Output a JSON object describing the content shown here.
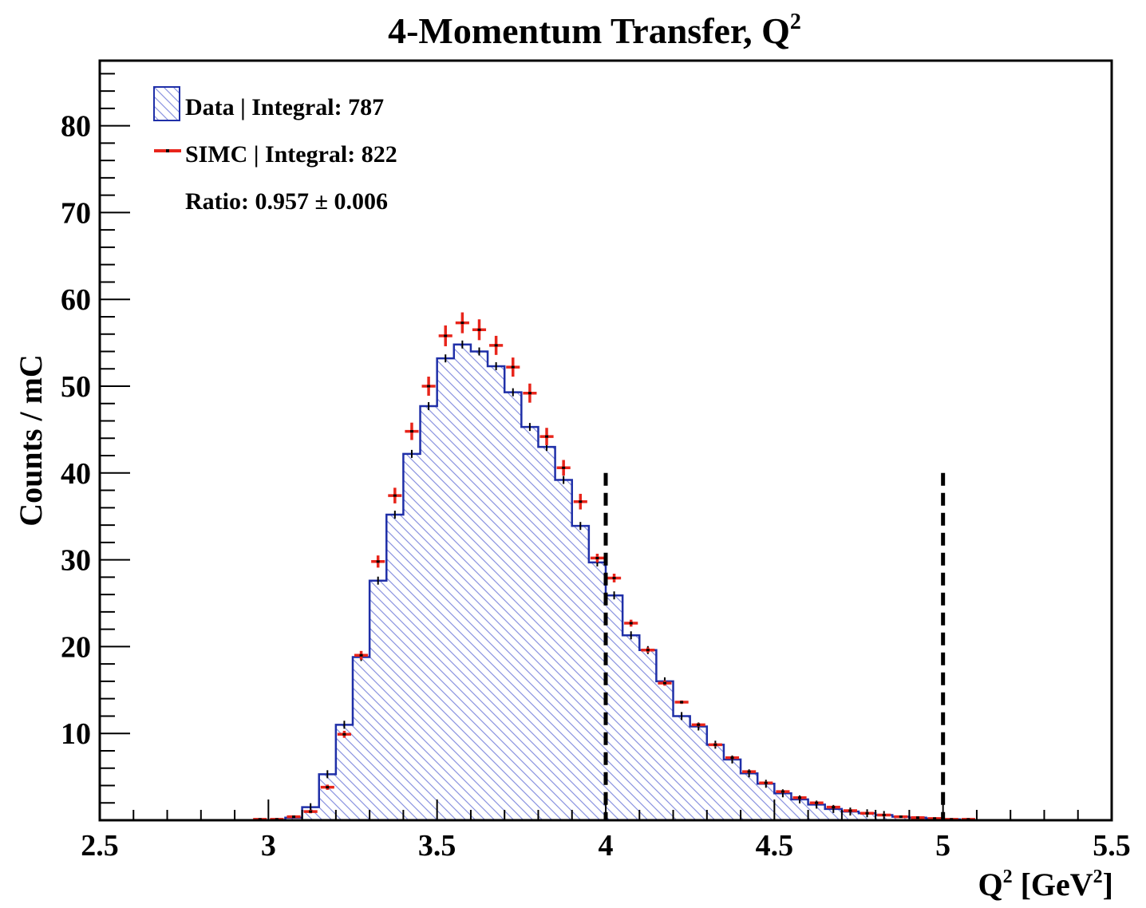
{
  "chart_data": {
    "type": "histogram",
    "title": "4-Momentum Transfer, Q",
    "title_sup": "2",
    "xlabel_main": "Q",
    "xlabel_sup": "2",
    "xlabel_unit": " [GeV",
    "xlabel_unit_sup": "2",
    "xlabel_close": "]",
    "ylabel": "Counts / mC",
    "xlim": [
      2.5,
      5.5
    ],
    "ylim": [
      0,
      87.5
    ],
    "x_ticks": [
      "2.5",
      "3",
      "3.5",
      "4",
      "4.5",
      "5",
      "5.5"
    ],
    "x_tick_values": [
      2.5,
      3.0,
      3.5,
      4.0,
      4.5,
      5.0,
      5.5
    ],
    "y_ticks": [
      "10",
      "20",
      "30",
      "40",
      "50",
      "60",
      "70",
      "80"
    ],
    "y_tick_values": [
      10,
      20,
      30,
      40,
      50,
      60,
      70,
      80
    ],
    "bin_width": 0.05,
    "bin_low_edges": [
      2.5,
      2.55,
      2.6,
      2.65,
      2.7,
      2.75,
      2.8,
      2.85,
      2.9,
      2.95,
      3.0,
      3.05,
      3.1,
      3.15,
      3.2,
      3.25,
      3.3,
      3.35,
      3.4,
      3.45,
      3.5,
      3.55,
      3.6,
      3.65,
      3.7,
      3.75,
      3.8,
      3.85,
      3.9,
      3.95,
      4.0,
      4.05,
      4.1,
      4.15,
      4.2,
      4.25,
      4.3,
      4.35,
      4.4,
      4.45,
      4.5,
      4.55,
      4.6,
      4.65,
      4.7,
      4.75,
      4.8,
      4.85,
      4.9,
      4.95,
      5.0,
      5.05,
      5.1,
      5.15,
      5.2,
      5.25,
      5.3,
      5.35,
      5.4,
      5.45
    ],
    "series": [
      {
        "name": "Data",
        "legend_label": "Data | Integral: 787",
        "style": "hatched-histogram",
        "color": "#1f2fa8",
        "values": [
          0,
          0,
          0,
          0,
          0,
          0,
          0,
          0,
          0,
          0,
          0,
          0.3,
          1.5,
          5.3,
          11,
          18.8,
          27.6,
          35.2,
          42.2,
          47.7,
          53.2,
          54.8,
          54,
          52.3,
          49.3,
          45.3,
          43,
          39.2,
          33.9,
          29.7,
          25.9,
          21.3,
          19.6,
          16,
          12,
          10.8,
          8.7,
          7,
          5.4,
          4.2,
          3.1,
          2.4,
          1.8,
          1.3,
          1,
          0.8,
          0.6,
          0.4,
          0.3,
          0.2,
          0.1,
          0,
          0,
          0,
          0,
          0,
          0,
          0,
          0,
          0
        ]
      },
      {
        "name": "SIMC",
        "legend_label": "SIMC | Integral: 822",
        "style": "points-with-error-bars",
        "color": "#e8251b",
        "values": [
          0,
          0,
          0,
          0,
          0,
          0,
          0,
          0,
          0,
          0.1,
          0.1,
          0.4,
          1,
          3.8,
          9.9,
          19,
          29.8,
          37.4,
          44.8,
          50,
          55.8,
          57.3,
          56.5,
          54.7,
          52.2,
          49.2,
          44.2,
          40.6,
          36.7,
          30.2,
          27.9,
          22.7,
          19.6,
          15.8,
          13.6,
          11,
          8.7,
          7.2,
          5.6,
          4.3,
          3.3,
          2.6,
          2,
          1.5,
          1.1,
          0.8,
          0.6,
          0.4,
          0.3,
          0.2,
          0.1,
          0.1,
          0,
          0,
          0,
          0,
          0,
          0,
          0,
          0
        ],
        "errors": [
          0,
          0,
          0,
          0,
          0,
          0,
          0,
          0,
          0,
          0,
          0,
          0.1,
          0.2,
          0.3,
          0.4,
          0.5,
          0.7,
          0.9,
          1.0,
          1.1,
          1.2,
          1.2,
          1.2,
          1.1,
          1.1,
          1.1,
          1.0,
          0.9,
          0.9,
          0.5,
          0.5,
          0.4,
          0.3,
          0.3,
          0.2,
          0.2,
          0.2,
          0.1,
          0.1,
          0.1,
          0.1,
          0.1,
          0.1,
          0.1,
          0,
          0,
          0,
          0,
          0,
          0,
          0,
          0,
          0,
          0,
          0,
          0,
          0,
          0,
          0,
          0
        ]
      }
    ],
    "cut_lines": [
      {
        "x": 4.0,
        "y_top": 40,
        "style": "dashed",
        "color": "#000000"
      },
      {
        "x": 5.0,
        "y_top": 40,
        "style": "dashed",
        "color": "#000000"
      }
    ],
    "ratio_text": "Ratio: 0.957  ± 0.006",
    "legend_position": "top-left",
    "grid": false
  }
}
